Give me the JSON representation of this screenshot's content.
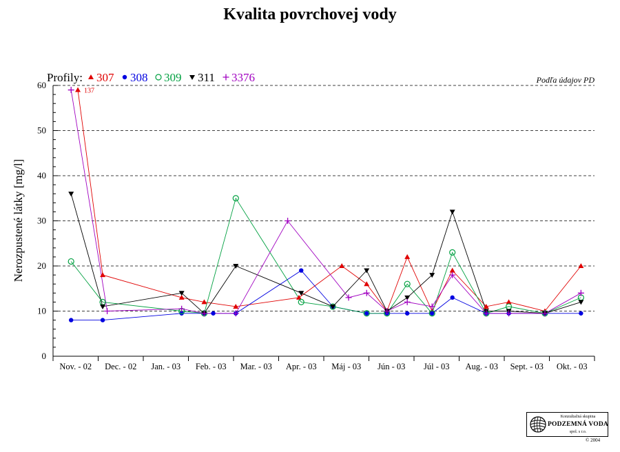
{
  "page": {
    "title": "Kvalita povrchovej vody"
  },
  "source_note": "Podľa údajov PD",
  "logo": {
    "line1": "Konzultačná skupina",
    "line2": "PODZEMNÁ VODA",
    "line3": "spol. s r.o.",
    "copyright": "© 2004"
  },
  "legend": {
    "prefix": "Profily:",
    "items": [
      {
        "label": "307",
        "color": "#e00000",
        "marker": "triangle-up"
      },
      {
        "label": "308",
        "color": "#0000e0",
        "marker": "circle-filled"
      },
      {
        "label": "309",
        "color": "#00a040",
        "marker": "circle-open"
      },
      {
        "label": "311",
        "color": "#000000",
        "marker": "triangle-down"
      },
      {
        "label": "3376",
        "color": "#a000c0",
        "marker": "plus"
      }
    ]
  },
  "chart_data": {
    "type": "line",
    "title": "Kvalita povrchovej vody",
    "ylabel": "Nerozpustené látky  [mg/l]",
    "xlabel": "",
    "ylim": [
      0,
      60
    ],
    "yticks": [
      0,
      10,
      20,
      30,
      40,
      50,
      60
    ],
    "grid": "horizontal-dashed",
    "categories": [
      "Nov. - 02",
      "Dec. - 02",
      "Jan. - 03",
      "Feb. - 03",
      "Mar. - 03",
      "Apr. - 03",
      "Máj - 03",
      "Jún - 03",
      "Júl - 03",
      "Aug. - 03",
      "Sept. - 03",
      "Okt. - 03"
    ],
    "annotations": [
      {
        "text": "137",
        "series": "307",
        "x": 0.55,
        "y": 59
      }
    ],
    "series": [
      {
        "name": "307",
        "color": "#e00000",
        "marker": "triangle-up",
        "points": [
          {
            "x": 0.55,
            "y": 59
          },
          {
            "x": 1.1,
            "y": 18
          },
          {
            "x": 2.85,
            "y": 13
          },
          {
            "x": 3.35,
            "y": 12
          },
          {
            "x": 4.05,
            "y": 11
          },
          {
            "x": 5.45,
            "y": 13
          },
          {
            "x": 6.4,
            "y": 20
          },
          {
            "x": 6.95,
            "y": 16
          },
          {
            "x": 7.4,
            "y": 10
          },
          {
            "x": 7.85,
            "y": 22
          },
          {
            "x": 8.4,
            "y": 10
          },
          {
            "x": 8.85,
            "y": 19
          },
          {
            "x": 9.6,
            "y": 11
          },
          {
            "x": 10.1,
            "y": 12
          },
          {
            "x": 10.9,
            "y": 10
          },
          {
            "x": 11.7,
            "y": 20
          }
        ]
      },
      {
        "name": "308",
        "color": "#0000e0",
        "marker": "circle-filled",
        "points": [
          {
            "x": 0.4,
            "y": 8
          },
          {
            "x": 1.1,
            "y": 8
          },
          {
            "x": 2.85,
            "y": 9.5
          },
          {
            "x": 3.35,
            "y": 9.5
          },
          {
            "x": 3.55,
            "y": 9.5
          },
          {
            "x": 4.05,
            "y": 9.5
          },
          {
            "x": 5.5,
            "y": 19
          },
          {
            "x": 6.2,
            "y": 11
          },
          {
            "x": 6.95,
            "y": 9.5
          },
          {
            "x": 7.4,
            "y": 9.5
          },
          {
            "x": 7.85,
            "y": 9.5
          },
          {
            "x": 8.4,
            "y": 9.5
          },
          {
            "x": 8.85,
            "y": 13
          },
          {
            "x": 9.6,
            "y": 9.5
          },
          {
            "x": 10.1,
            "y": 9.5
          },
          {
            "x": 10.9,
            "y": 9.5
          },
          {
            "x": 11.7,
            "y": 9.5
          }
        ]
      },
      {
        "name": "309",
        "color": "#00a040",
        "marker": "circle-open",
        "points": [
          {
            "x": 0.4,
            "y": 21
          },
          {
            "x": 1.1,
            "y": 12
          },
          {
            "x": 2.85,
            "y": 10
          },
          {
            "x": 3.35,
            "y": 9.5
          },
          {
            "x": 4.05,
            "y": 35
          },
          {
            "x": 5.5,
            "y": 12
          },
          {
            "x": 6.2,
            "y": 11
          },
          {
            "x": 6.95,
            "y": 9.5
          },
          {
            "x": 7.4,
            "y": 9.5
          },
          {
            "x": 7.85,
            "y": 16
          },
          {
            "x": 8.4,
            "y": 9.5
          },
          {
            "x": 8.85,
            "y": 23
          },
          {
            "x": 9.6,
            "y": 9.5
          },
          {
            "x": 10.1,
            "y": 11
          },
          {
            "x": 10.9,
            "y": 9.5
          },
          {
            "x": 11.7,
            "y": 13
          }
        ]
      },
      {
        "name": "311",
        "color": "#000000",
        "marker": "triangle-down",
        "points": [
          {
            "x": 0.4,
            "y": 36
          },
          {
            "x": 1.1,
            "y": 11
          },
          {
            "x": 2.85,
            "y": 14
          },
          {
            "x": 3.35,
            "y": 9.5
          },
          {
            "x": 4.05,
            "y": 20
          },
          {
            "x": 5.5,
            "y": 14
          },
          {
            "x": 6.2,
            "y": 11
          },
          {
            "x": 6.95,
            "y": 19
          },
          {
            "x": 7.4,
            "y": 10
          },
          {
            "x": 7.85,
            "y": 13
          },
          {
            "x": 8.4,
            "y": 18
          },
          {
            "x": 8.85,
            "y": 32
          },
          {
            "x": 9.6,
            "y": 10
          },
          {
            "x": 10.1,
            "y": 10
          },
          {
            "x": 10.9,
            "y": 9.5
          },
          {
            "x": 11.7,
            "y": 12
          }
        ]
      },
      {
        "name": "3376",
        "color": "#a000c0",
        "marker": "plus",
        "points": [
          {
            "x": 0.4,
            "y": 59
          },
          {
            "x": 1.2,
            "y": 10
          },
          {
            "x": 2.85,
            "y": 10.5
          },
          {
            "x": 3.35,
            "y": 9.5
          },
          {
            "x": 4.05,
            "y": 9.5
          },
          {
            "x": 5.2,
            "y": 30
          },
          {
            "x": 6.55,
            "y": 13
          },
          {
            "x": 6.95,
            "y": 14
          },
          {
            "x": 7.4,
            "y": 10
          },
          {
            "x": 7.85,
            "y": 12
          },
          {
            "x": 8.4,
            "y": 11
          },
          {
            "x": 8.85,
            "y": 18
          },
          {
            "x": 9.6,
            "y": 9.5
          },
          {
            "x": 10.1,
            "y": 9.5
          },
          {
            "x": 10.9,
            "y": 9.5
          },
          {
            "x": 11.7,
            "y": 14
          }
        ]
      }
    ]
  }
}
